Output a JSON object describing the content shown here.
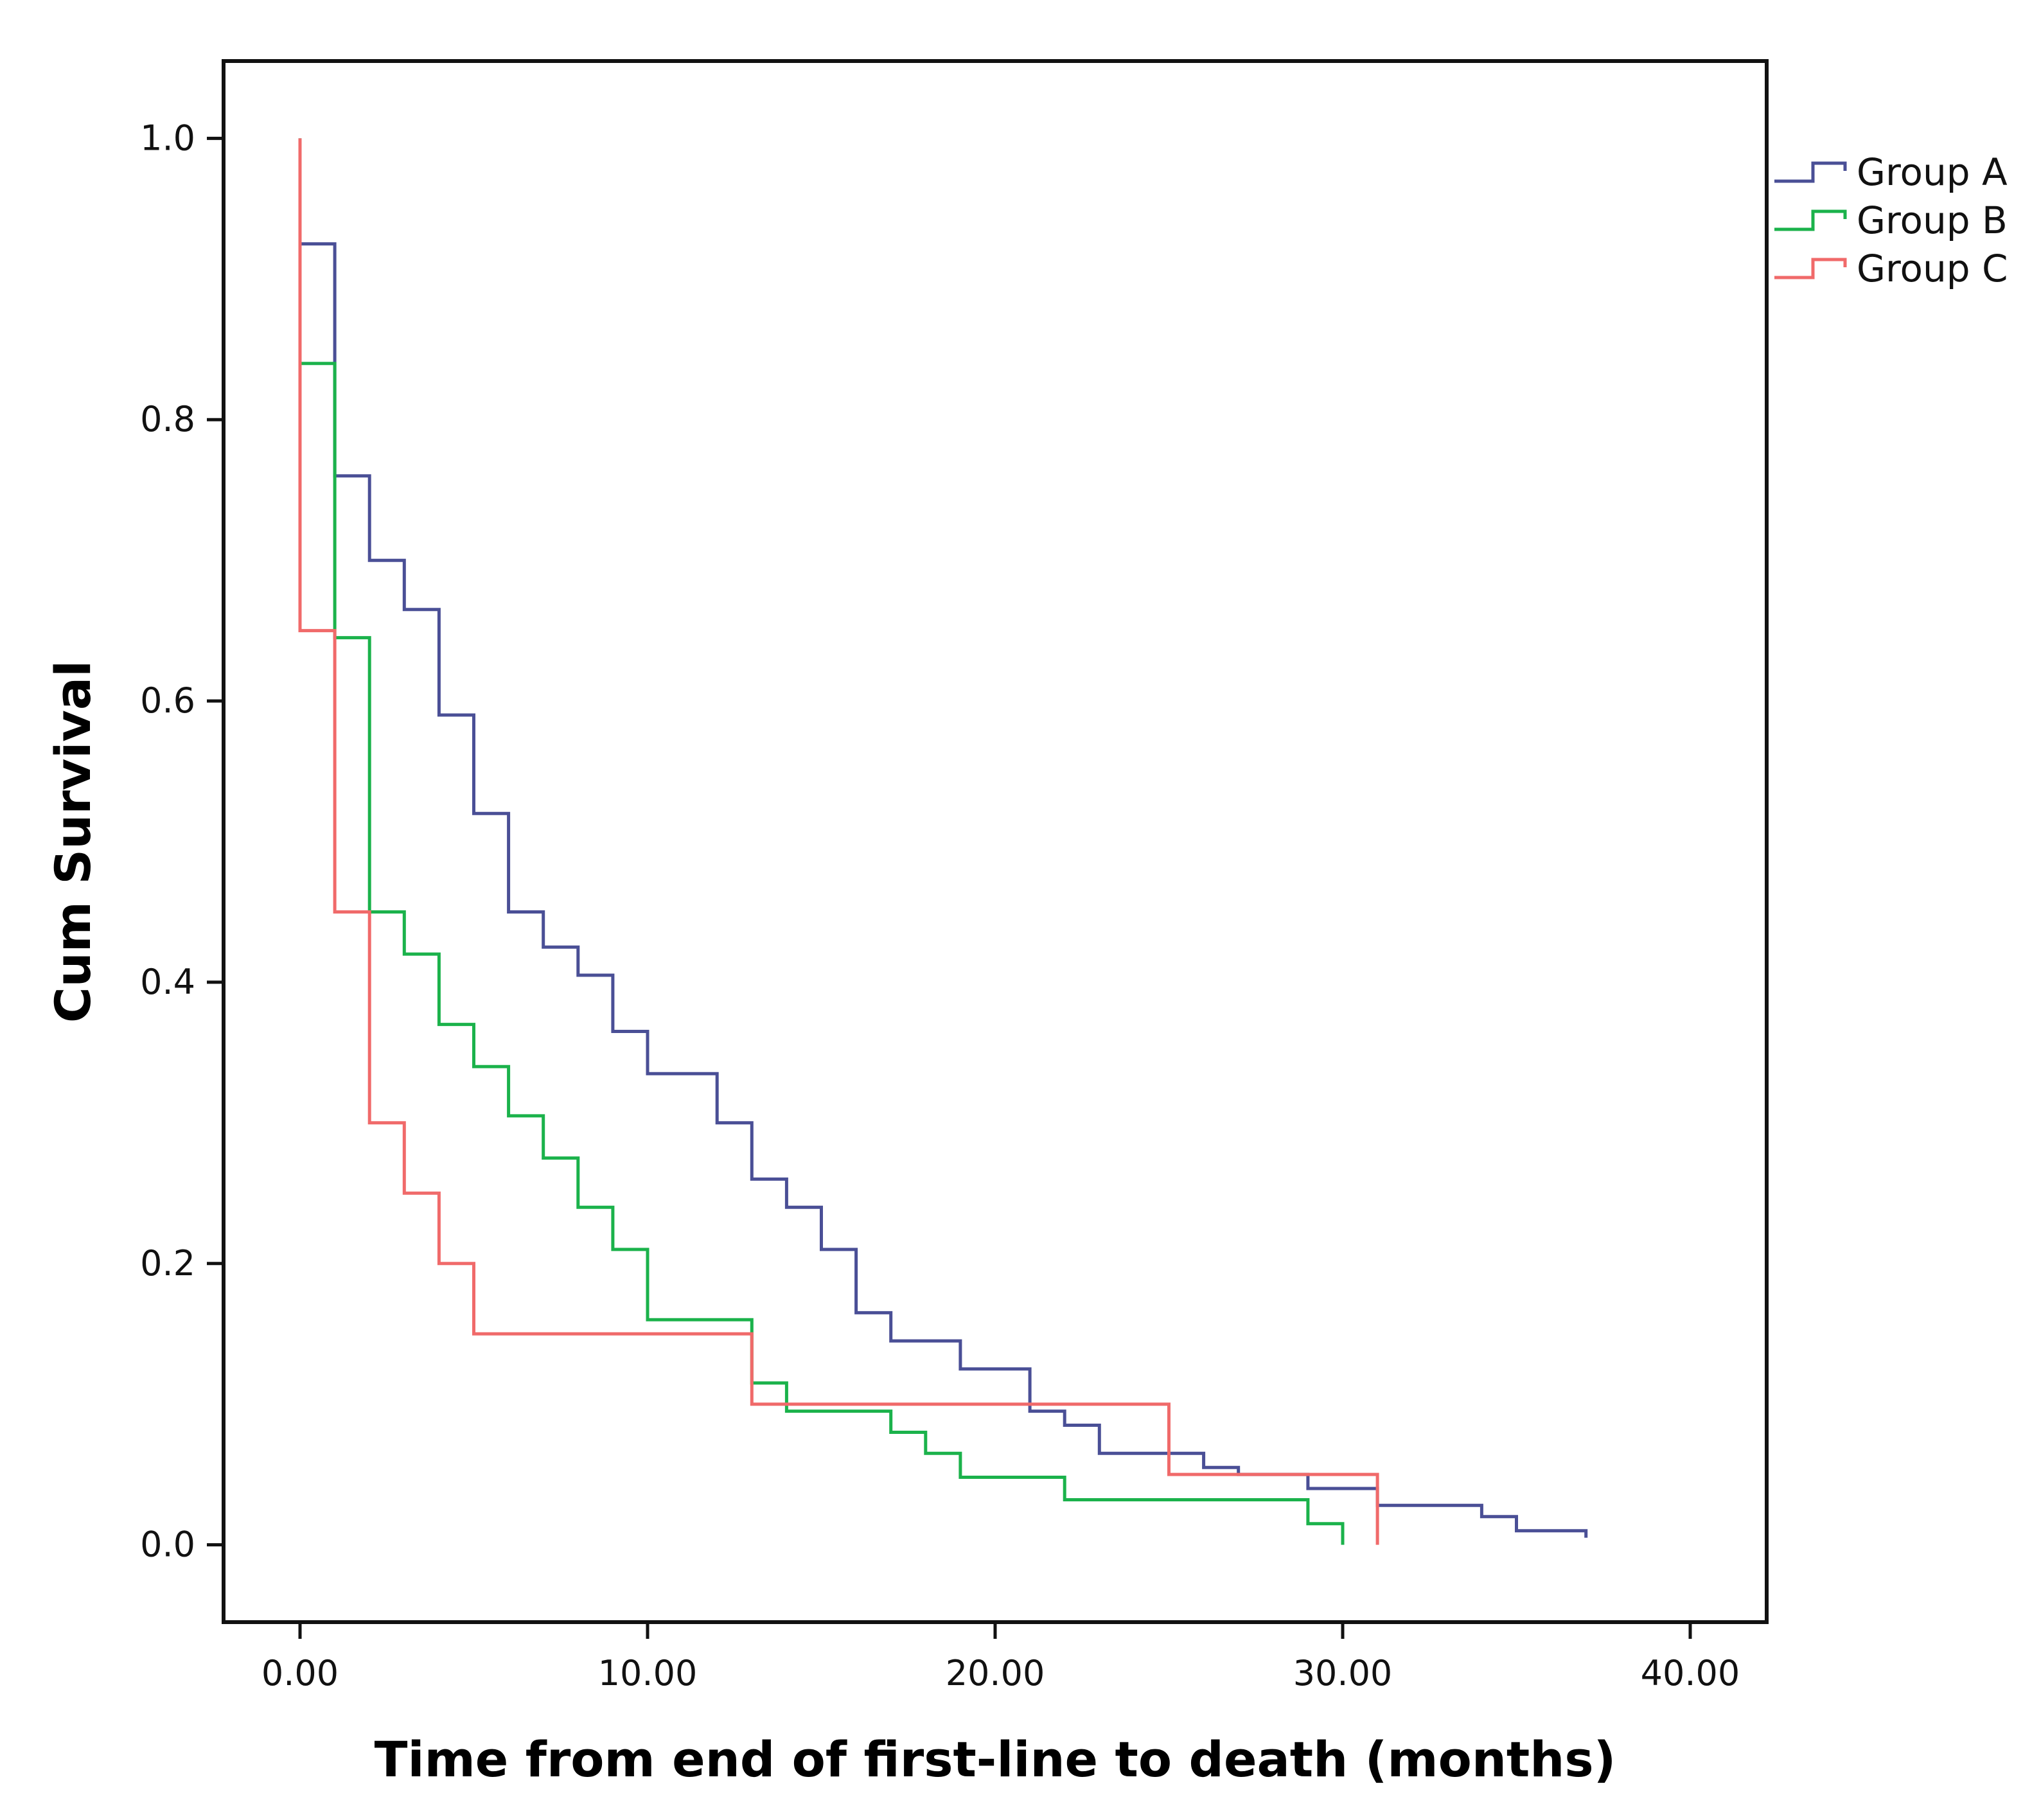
{
  "chart_data": {
    "type": "line",
    "subtype": "kaplan-meier-step",
    "title": "",
    "xlabel": "Time from end of first-line to death (months)",
    "ylabel": "Cum Survival",
    "xlim": [
      -2.2,
      42.2
    ],
    "ylim": [
      -0.055,
      1.055
    ],
    "x_ticks": [
      0,
      10,
      20,
      30,
      40
    ],
    "x_tick_labels": [
      "0.00",
      "10.00",
      "20.00",
      "30.00",
      "40.00"
    ],
    "y_ticks": [
      0,
      0.2,
      0.4,
      0.6,
      0.8,
      1.0
    ],
    "y_tick_labels": [
      "0.0",
      "0.2",
      "0.4",
      "0.6",
      "0.8",
      "1.0"
    ],
    "grid": false,
    "legend_position": "right-top",
    "series": [
      {
        "name": "Group A",
        "color": "#4a4f96",
        "x": [
          0,
          1,
          2,
          3,
          4,
          5,
          6,
          7,
          8,
          9,
          10,
          11,
          12,
          13,
          14,
          15,
          16,
          17,
          18,
          19,
          20,
          21,
          22,
          23,
          24,
          25,
          26,
          27,
          28,
          29,
          30,
          31,
          32,
          33,
          34,
          35,
          36,
          37
        ],
        "y": [
          0.925,
          0.76,
          0.7,
          0.665,
          0.59,
          0.52,
          0.45,
          0.425,
          0.405,
          0.365,
          0.335,
          0.335,
          0.3,
          0.26,
          0.24,
          0.21,
          0.165,
          0.145,
          0.145,
          0.125,
          0.125,
          0.095,
          0.085,
          0.065,
          0.065,
          0.065,
          0.055,
          0.05,
          0.05,
          0.04,
          0.04,
          0.028,
          0.028,
          0.028,
          0.02,
          0.01,
          0.01,
          0.005
        ]
      },
      {
        "name": "Group B",
        "color": "#1bb24b",
        "x": [
          0,
          1,
          2,
          3,
          4,
          5,
          6,
          7,
          8,
          9,
          10,
          11,
          12,
          13,
          14,
          15,
          16,
          17,
          18,
          19,
          20,
          21,
          22,
          23,
          24,
          25,
          26,
          27,
          28,
          29,
          30
        ],
        "y": [
          0.84,
          0.645,
          0.45,
          0.42,
          0.37,
          0.34,
          0.305,
          0.275,
          0.24,
          0.21,
          0.16,
          0.16,
          0.16,
          0.115,
          0.095,
          0.095,
          0.095,
          0.08,
          0.065,
          0.048,
          0.048,
          0.048,
          0.032,
          0.032,
          0.032,
          0.032,
          0.032,
          0.032,
          0.032,
          0.015,
          0.0
        ]
      },
      {
        "name": "Group C",
        "color": "#f06a6a",
        "x": [
          0,
          1,
          2,
          3,
          4,
          5,
          6,
          7,
          8,
          9,
          10,
          11,
          12,
          13,
          14,
          15,
          16,
          17,
          18,
          19,
          20,
          21,
          22,
          23,
          24,
          25,
          26,
          27,
          28,
          29,
          30,
          31
        ],
        "y": [
          0.65,
          0.45,
          0.3,
          0.25,
          0.2,
          0.15,
          0.15,
          0.15,
          0.15,
          0.15,
          0.15,
          0.15,
          0.15,
          0.1,
          0.1,
          0.1,
          0.1,
          0.1,
          0.1,
          0.1,
          0.1,
          0.1,
          0.1,
          0.1,
          0.1,
          0.05,
          0.05,
          0.05,
          0.05,
          0.05,
          0.05,
          0.0
        ]
      }
    ]
  }
}
